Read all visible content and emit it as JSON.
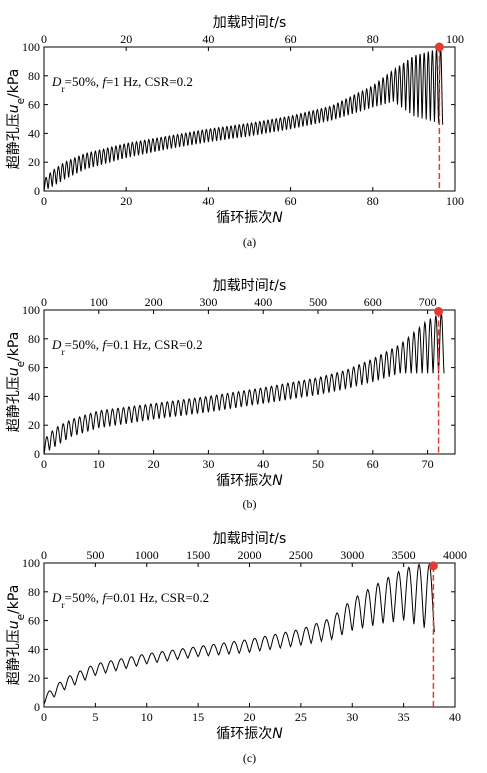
{
  "chart_data": [
    {
      "type": "line",
      "panel": "(a)",
      "top_xlabel": "加载时间t/s",
      "xlabel": "循环振次N",
      "ylabel": "超静孔压u_e/kPa",
      "annotation": "D_r=50%, f=1 Hz, CSR=0.2",
      "xlim": [
        0,
        100
      ],
      "xticks": [
        0,
        20,
        40,
        60,
        80,
        100
      ],
      "top_xlim": [
        0,
        100
      ],
      "top_xticks": [
        0,
        20,
        40,
        60,
        80,
        100
      ],
      "ylim": [
        0,
        100
      ],
      "yticks": [
        0,
        20,
        40,
        60,
        80,
        100
      ],
      "liquefaction_N": 96.2,
      "liquefaction_ue": 100,
      "cycles_total": 97,
      "series": [
        {
          "upper_envelope": [
            [
              0,
              8
            ],
            [
              2,
              14
            ],
            [
              5,
              20
            ],
            [
              10,
              26
            ],
            [
              20,
              33
            ],
            [
              30,
              38
            ],
            [
              40,
              43
            ],
            [
              50,
              47
            ],
            [
              60,
              52
            ],
            [
              70,
              59
            ],
            [
              80,
              73
            ],
            [
              85,
              84
            ],
            [
              90,
              94
            ],
            [
              95,
              98
            ],
            [
              97,
              100
            ]
          ],
          "lower_envelope": [
            [
              0,
              0
            ],
            [
              2,
              3
            ],
            [
              5,
              8
            ],
            [
              10,
              15
            ],
            [
              20,
              23
            ],
            [
              30,
              29
            ],
            [
              40,
              34
            ],
            [
              50,
              38
            ],
            [
              60,
              43
            ],
            [
              70,
              49
            ],
            [
              80,
              58
            ],
            [
              85,
              62
            ],
            [
              90,
              52
            ],
            [
              95,
              48
            ],
            [
              97,
              46
            ]
          ]
        }
      ]
    },
    {
      "type": "line",
      "panel": "(b)",
      "top_xlabel": "加载时间t/s",
      "xlabel": "循环振次N",
      "ylabel": "超静孔压u_e/kPa",
      "annotation": "D_r=50%, f=0.1 Hz, CSR=0.2",
      "xlim": [
        0,
        75
      ],
      "xticks": [
        0,
        10,
        20,
        30,
        40,
        50,
        60,
        70
      ],
      "top_xlim": [
        0,
        750
      ],
      "top_xticks": [
        0,
        100,
        200,
        300,
        400,
        500,
        600,
        700
      ],
      "ylim": [
        0,
        100
      ],
      "yticks": [
        0,
        20,
        40,
        60,
        80,
        100
      ],
      "liquefaction_N": 72,
      "liquefaction_ue": 99,
      "cycles_total": 73,
      "series": [
        {
          "upper_envelope": [
            [
              0,
              10
            ],
            [
              2,
              18
            ],
            [
              5,
              24
            ],
            [
              10,
              30
            ],
            [
              20,
              35
            ],
            [
              30,
              40
            ],
            [
              40,
              46
            ],
            [
              50,
              53
            ],
            [
              55,
              58
            ],
            [
              60,
              66
            ],
            [
              65,
              76
            ],
            [
              70,
              93
            ],
            [
              73,
              99
            ]
          ],
          "lower_envelope": [
            [
              0,
              0
            ],
            [
              2,
              5
            ],
            [
              5,
              12
            ],
            [
              10,
              18
            ],
            [
              20,
              24
            ],
            [
              30,
              29
            ],
            [
              40,
              35
            ],
            [
              50,
              41
            ],
            [
              55,
              45
            ],
            [
              60,
              50
            ],
            [
              65,
              56
            ],
            [
              70,
              56
            ],
            [
              73,
              56
            ]
          ]
        }
      ]
    },
    {
      "type": "line",
      "panel": "(c)",
      "top_xlabel": "加载时间t/s",
      "xlabel": "循环振次N",
      "ylabel": "超静孔压u_e/kPa",
      "annotation": "D_r=50%, f=0.01 Hz, CSR=0.2",
      "xlim": [
        0,
        40
      ],
      "xticks": [
        0,
        5,
        10,
        15,
        20,
        25,
        30,
        35,
        40
      ],
      "top_xlim": [
        0,
        4000
      ],
      "top_xticks": [
        0,
        500,
        1000,
        1500,
        2000,
        2500,
        3000,
        3500,
        4000
      ],
      "ylim": [
        0,
        100
      ],
      "yticks": [
        0,
        20,
        40,
        60,
        80,
        100
      ],
      "liquefaction_N": 37.9,
      "liquefaction_ue": 98,
      "cycles_total": 38,
      "series": [
        {
          "upper_envelope": [
            [
              0,
              8
            ],
            [
              2,
              20
            ],
            [
              5,
              30
            ],
            [
              10,
              37
            ],
            [
              15,
              42
            ],
            [
              20,
              47
            ],
            [
              25,
              54
            ],
            [
              28,
              62
            ],
            [
              30,
              75
            ],
            [
              33,
              88
            ],
            [
              35,
              96
            ],
            [
              37,
              100
            ],
            [
              38,
              98
            ]
          ],
          "lower_envelope": [
            [
              0,
              2
            ],
            [
              2,
              12
            ],
            [
              5,
              22
            ],
            [
              10,
              30
            ],
            [
              15,
              35
            ],
            [
              20,
              38
            ],
            [
              25,
              43
            ],
            [
              28,
              47
            ],
            [
              30,
              53
            ],
            [
              33,
              58
            ],
            [
              35,
              60
            ],
            [
              37,
              55
            ],
            [
              38,
              52
            ]
          ]
        }
      ]
    }
  ],
  "captions": [
    "(a)",
    "(b)",
    "(c)"
  ],
  "colors": {
    "curve": "#000000",
    "liquefaction_marker": "#e03c31",
    "liquefaction_line": "#e03c31",
    "axis": "#000000"
  }
}
